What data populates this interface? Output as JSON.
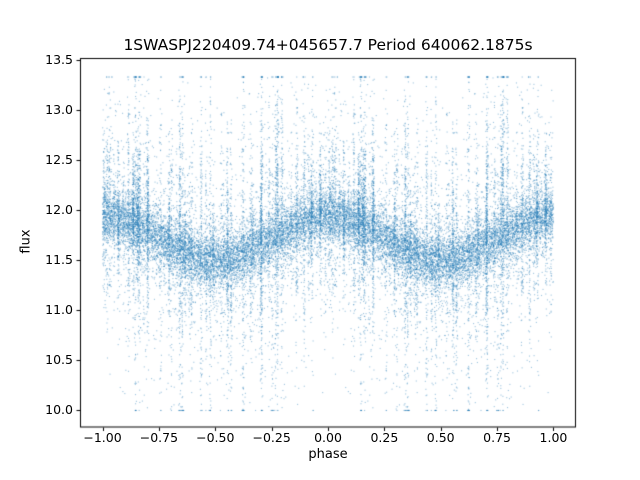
{
  "chart_data": {
    "type": "scatter",
    "title": "1SWASPJ220409.74+045657.7 Period 640062.1875s",
    "xlabel": "phase",
    "ylabel": "flux",
    "xlim": [
      -1.1,
      1.1
    ],
    "ylim": [
      9.83,
      13.52
    ],
    "xticks": [
      -1.0,
      -0.75,
      -0.5,
      -0.25,
      0.0,
      0.25,
      0.5,
      0.75,
      1.0
    ],
    "x_tick_labels": [
      "−1.00",
      "−0.75",
      "−0.50",
      "−0.25",
      "0.00",
      "0.25",
      "0.50",
      "0.75",
      "1.00"
    ],
    "yticks": [
      10.0,
      10.5,
      11.0,
      11.5,
      12.0,
      12.5,
      13.0,
      13.5
    ],
    "y_tick_labels": [
      "10.0",
      "10.5",
      "11.0",
      "11.5",
      "12.0",
      "12.5",
      "13.0",
      "13.5"
    ],
    "legend": "none",
    "grid": false,
    "point_color": "#1f77b4",
    "point_alpha": 0.45,
    "model": {
      "description": "phase-folded light curve, duplicated over phase -1..1; mean flux = baseline + amplitude*cos(2*pi*phase)",
      "baseline": 11.72,
      "amplitude": 0.22,
      "flux_min": 10.0,
      "flux_max": 13.33,
      "core_sigma": 0.13,
      "mid_sigma": 0.27,
      "tail_sigma": 0.65,
      "n_half": 9000,
      "n_streaks": 60,
      "n_outliers": 260,
      "seed": 7
    }
  }
}
